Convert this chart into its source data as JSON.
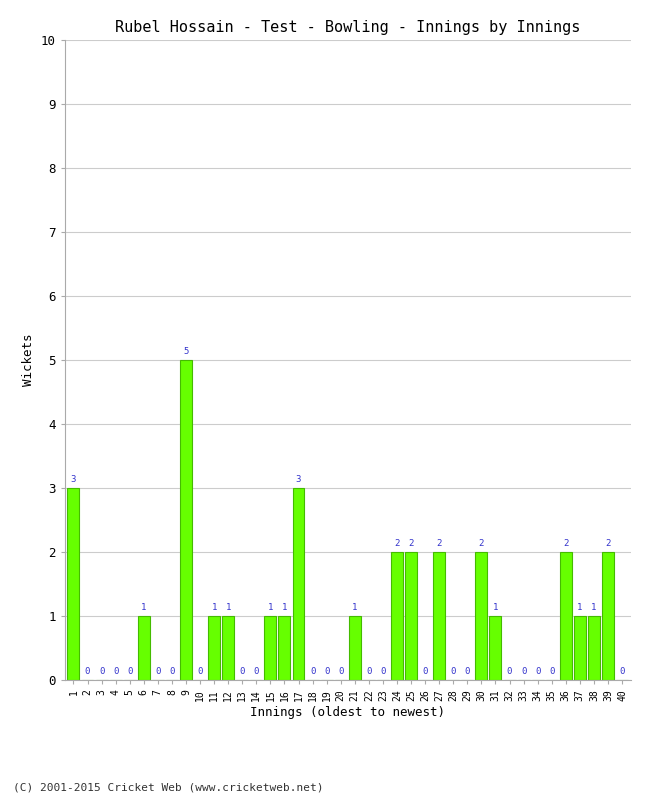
{
  "title": "Rubel Hossain - Test - Bowling - Innings by Innings",
  "xlabel": "Innings (oldest to newest)",
  "ylabel": "Wickets",
  "footer": "(C) 2001-2015 Cricket Web (www.cricketweb.net)",
  "ylim": [
    0,
    10
  ],
  "yticks": [
    0,
    1,
    2,
    3,
    4,
    5,
    6,
    7,
    8,
    9,
    10
  ],
  "bar_color": "#66ff00",
  "bar_edge_color": "#44bb00",
  "label_color": "#3333cc",
  "background_color": "#ffffff",
  "grid_color": "#cccccc",
  "innings": [
    1,
    2,
    3,
    4,
    5,
    6,
    7,
    8,
    9,
    10,
    11,
    12,
    13,
    14,
    15,
    16,
    17,
    18,
    19,
    20,
    21,
    22,
    23,
    24,
    25,
    26,
    27,
    28,
    29,
    30,
    31,
    32,
    33,
    34,
    35,
    36,
    37,
    38,
    39,
    40
  ],
  "wickets": [
    3,
    0,
    0,
    0,
    0,
    1,
    0,
    0,
    5,
    0,
    1,
    1,
    0,
    0,
    1,
    1,
    3,
    0,
    0,
    0,
    1,
    0,
    0,
    2,
    2,
    0,
    2,
    0,
    0,
    2,
    1,
    0,
    0,
    0,
    0,
    2,
    1,
    1,
    2,
    0
  ]
}
